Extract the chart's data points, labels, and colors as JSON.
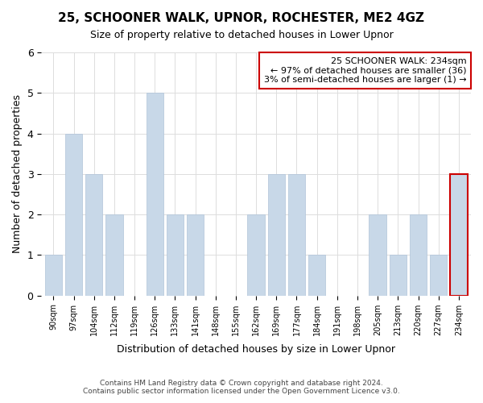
{
  "title": "25, SCHOONER WALK, UPNOR, ROCHESTER, ME2 4GZ",
  "subtitle": "Size of property relative to detached houses in Lower Upnor",
  "xlabel": "Distribution of detached houses by size in Lower Upnor",
  "ylabel": "Number of detached properties",
  "categories": [
    "90sqm",
    "97sqm",
    "104sqm",
    "112sqm",
    "119sqm",
    "126sqm",
    "133sqm",
    "141sqm",
    "148sqm",
    "155sqm",
    "162sqm",
    "169sqm",
    "177sqm",
    "184sqm",
    "191sqm",
    "198sqm",
    "205sqm",
    "213sqm",
    "220sqm",
    "227sqm",
    "234sqm"
  ],
  "values": [
    1,
    4,
    3,
    2,
    0,
    5,
    2,
    2,
    0,
    0,
    2,
    3,
    3,
    1,
    0,
    0,
    2,
    1,
    2,
    1,
    3
  ],
  "highlight_index": 20,
  "bar_color": "#c8d8e8",
  "bar_edge_color": "#b0c4d8",
  "ylim": [
    0,
    6
  ],
  "yticks": [
    0,
    1,
    2,
    3,
    4,
    5,
    6
  ],
  "annotation_title": "25 SCHOONER WALK: 234sqm",
  "annotation_line1": "← 97% of detached houses are smaller (36)",
  "annotation_line2": "3% of semi-detached houses are larger (1) →",
  "annotation_box_color": "#ffffff",
  "annotation_box_edge_color": "#cc0000",
  "footer_line1": "Contains HM Land Registry data © Crown copyright and database right 2024.",
  "footer_line2": "Contains public sector information licensed under the Open Government Licence v3.0.",
  "background_color": "#ffffff",
  "grid_color": "#dddddd"
}
